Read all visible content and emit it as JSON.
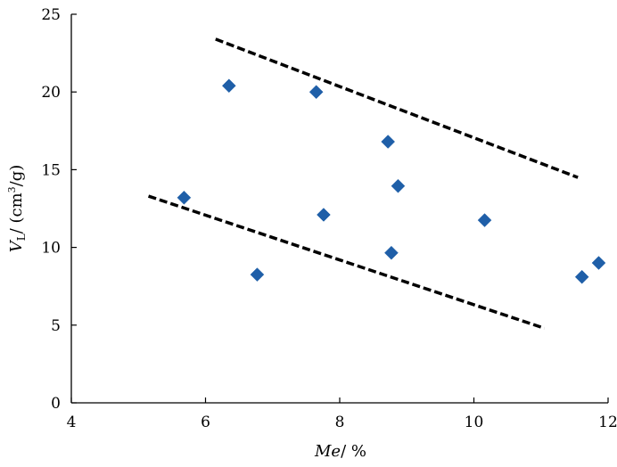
{
  "chart_data": {
    "type": "scatter",
    "title": "",
    "xlabel": {
      "italic": "Me",
      "rest": "/ %"
    },
    "ylabel": {
      "v": "V",
      "sub": "L",
      "pre": "/ (cm",
      "sup": "3",
      "post": "/g)"
    },
    "xlim": [
      4,
      12
    ],
    "ylim": [
      0,
      25
    ],
    "xticks": [
      4,
      6,
      8,
      10,
      12
    ],
    "yticks": [
      0,
      5,
      10,
      15,
      20,
      25
    ],
    "grid": false,
    "legend": "none",
    "marker": "diamond",
    "series": [
      {
        "color": "#1f5fa8",
        "points": [
          {
            "x": 5.68,
            "y": 13.2
          },
          {
            "x": 6.35,
            "y": 20.4
          },
          {
            "x": 6.77,
            "y": 8.25
          },
          {
            "x": 7.65,
            "y": 20.0
          },
          {
            "x": 7.76,
            "y": 12.1
          },
          {
            "x": 8.72,
            "y": 16.8
          },
          {
            "x": 8.77,
            "y": 9.65
          },
          {
            "x": 8.87,
            "y": 13.95
          },
          {
            "x": 10.16,
            "y": 11.75
          },
          {
            "x": 11.61,
            "y": 8.1
          },
          {
            "x": 11.86,
            "y": 9.0
          }
        ]
      }
    ],
    "bounds": [
      {
        "style": "dashed",
        "color": "#000000",
        "x": [
          6.15,
          11.55
        ],
        "y": [
          23.4,
          14.5
        ]
      },
      {
        "style": "dashed",
        "color": "#000000",
        "x": [
          5.15,
          11.05
        ],
        "y": [
          13.3,
          4.8
        ]
      }
    ]
  }
}
